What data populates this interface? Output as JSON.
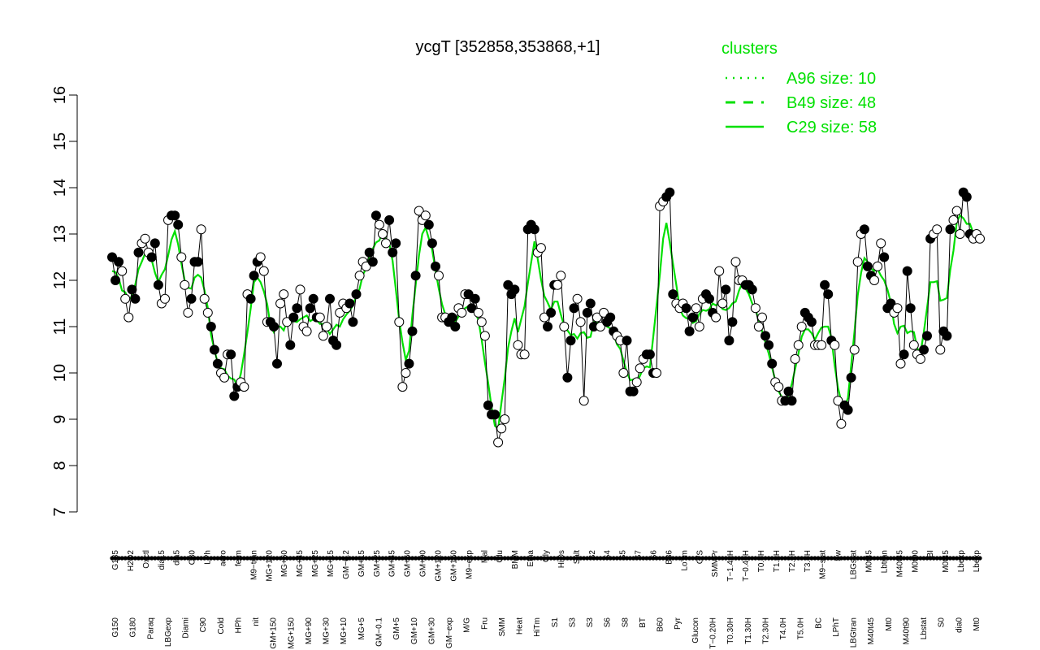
{
  "chart_data": {
    "type": "line",
    "title": "ycgT [352858,353868,+1]",
    "xlabel": "",
    "ylabel": "",
    "ylim": [
      7,
      16
    ],
    "yticks": [
      "7",
      "8",
      "9",
      "10",
      "11",
      "12",
      "13",
      "14",
      "15",
      "16"
    ],
    "grid": false,
    "legend": {
      "title": "clusters",
      "placement": "top-right",
      "entries": [
        {
          "label": "A96 size: 10",
          "style": "dotted"
        },
        {
          "label": "B49 size: 48",
          "style": "dashed"
        },
        {
          "label": "C29 size: 58",
          "style": "solid"
        }
      ]
    },
    "colors": {
      "cluster_line": "#00e000",
      "profile_line": "#000000"
    },
    "x_labels_upper": [
      "G135",
      "H2O2",
      "Oxctl",
      "dia15",
      "dia5",
      "C30",
      "LPh",
      "aero",
      "ferm",
      "M9−tran",
      "MG+120",
      "MG+60",
      "MG+45",
      "MG+25",
      "MG+15",
      "GM−0.2",
      "GM+15",
      "GM+25",
      "GM+45",
      "GM+60",
      "GM+90",
      "GM+120",
      "GM+150",
      "M9−exp",
      "Mal",
      "Glu",
      "BMM",
      "Etha",
      "Gly",
      "HiOs",
      "Salt",
      "S2",
      "S4",
      "S5",
      "S7",
      "S6",
      "B36",
      "LoTm",
      "G/S",
      "SMMPr",
      "T−1.40H",
      "T−0.40H",
      "T0.0H",
      "T1.0H",
      "T2.0H",
      "T3.0H",
      "M9−stat",
      "Sw",
      "LBGstat",
      "M0t45",
      "Lbtran",
      "M40t45",
      "M0t90",
      "BI",
      "M0t45",
      "Lbexp",
      "Lbexp"
    ],
    "x_labels_lower": [
      "G150",
      "G180",
      "Paraq",
      "LBGexp",
      "Diami",
      "C90",
      "Cold",
      "HPh",
      "nit",
      "GM+150",
      "MG+150",
      "MG+90",
      "MG+30",
      "MG+10",
      "MG+5",
      "GM−0.1",
      "GM+5",
      "GM+10",
      "GM+30",
      "GM−exp",
      "M/G",
      "Fru",
      "SMM",
      "Heat",
      "HiTm",
      "S1",
      "S3",
      "S3",
      "S6",
      "S8",
      "BT",
      "B60",
      "Pyr",
      "Glucon",
      "T−0.20H",
      "T0.30H",
      "T1.30H",
      "T2.30H",
      "T4.0H",
      "T5.0H",
      "BC",
      "LPhT",
      "LBGtran",
      "M40t45",
      "Mt0",
      "M40t90",
      "Lbstat",
      "S0",
      "dia0",
      "Mt0"
    ],
    "series": [
      {
        "name": "",
        "values": [
          12.5,
          12.0,
          12.4,
          12.2,
          11.6,
          11.2,
          11.8,
          11.6,
          12.6,
          12.8,
          12.9,
          12.6,
          12.5,
          12.8,
          11.9,
          11.5,
          11.6,
          13.3,
          13.4,
          13.4,
          13.2,
          12.5,
          11.9,
          11.3,
          11.6,
          12.4,
          12.4,
          13.1,
          11.6,
          11.3,
          11.0,
          10.5,
          10.2,
          10.0,
          9.9,
          10.4,
          10.4,
          9.5,
          9.7,
          9.8,
          9.7,
          11.7,
          11.6,
          12.1,
          12.4,
          12.5,
          12.2,
          11.1,
          11.1,
          11.0,
          10.2,
          11.5,
          11.7,
          11.1,
          10.6,
          11.2,
          11.4,
          11.8,
          11.0,
          10.9,
          11.4,
          11.6,
          11.2,
          11.2,
          10.8,
          11.0,
          11.6,
          10.7,
          10.6,
          11.3,
          11.5,
          11.4,
          11.5,
          11.1,
          11.7,
          12.1,
          12.4,
          12.3,
          12.6,
          12.4,
          13.4,
          13.2,
          13.0,
          12.8,
          13.3,
          12.6,
          12.8,
          11.1,
          9.7,
          10.0,
          10.2,
          10.9,
          12.1,
          13.5,
          13.3,
          13.4,
          13.2,
          12.8,
          12.3,
          12.1,
          11.2,
          11.2,
          11.1,
          11.2,
          11.0,
          11.4,
          11.3,
          11.7,
          11.7,
          11.4,
          11.6,
          11.3,
          11.1,
          10.8,
          9.3,
          9.1,
          9.1,
          8.5,
          8.8,
          9.0,
          11.9,
          11.7,
          11.8,
          10.6,
          10.4,
          10.4,
          13.1,
          13.2,
          13.1,
          12.6,
          12.7,
          11.2,
          11.0,
          11.3,
          11.9,
          11.9,
          12.1,
          11.0,
          9.9,
          10.7,
          11.4,
          11.6,
          11.1,
          9.4,
          11.3,
          11.5,
          11.0,
          11.2,
          11.0,
          11.3,
          11.1,
          11.2,
          10.9,
          10.8,
          10.7,
          10.0,
          10.7,
          9.6,
          9.6,
          9.8,
          10.1,
          10.3,
          10.4,
          10.4,
          10.0,
          10.0,
          13.6,
          13.7,
          13.8,
          13.9,
          11.7,
          11.5,
          11.4,
          11.5,
          11.4,
          10.9,
          11.2,
          11.4,
          11.0,
          11.6,
          11.7,
          11.6,
          11.3,
          11.2,
          12.2,
          11.5,
          11.8,
          10.7,
          11.1,
          12.4,
          12.0,
          12.0,
          11.9,
          11.9,
          11.8,
          11.4,
          11.0,
          11.2,
          10.8,
          10.6,
          10.2,
          9.8,
          9.7,
          9.4,
          9.4,
          9.6,
          9.4,
          10.3,
          10.6,
          11.0,
          11.3,
          11.2,
          11.1,
          10.6,
          10.6,
          10.6,
          11.9,
          11.7,
          10.7,
          10.6,
          9.4,
          8.9,
          9.3,
          9.2,
          9.9,
          10.5,
          12.4,
          13.0,
          13.1,
          12.3,
          12.1,
          12.0,
          12.3,
          12.8,
          12.5,
          11.4,
          11.5,
          11.3,
          11.4,
          10.2,
          10.4,
          12.2,
          11.4,
          10.6,
          10.4,
          10.3,
          10.5,
          10.8,
          12.9,
          13.0,
          13.1,
          10.5,
          10.9,
          10.8,
          13.1,
          13.3,
          13.5,
          13.0,
          13.9,
          13.8,
          13.0,
          12.9,
          13.0,
          12.9
        ]
      }
    ]
  }
}
